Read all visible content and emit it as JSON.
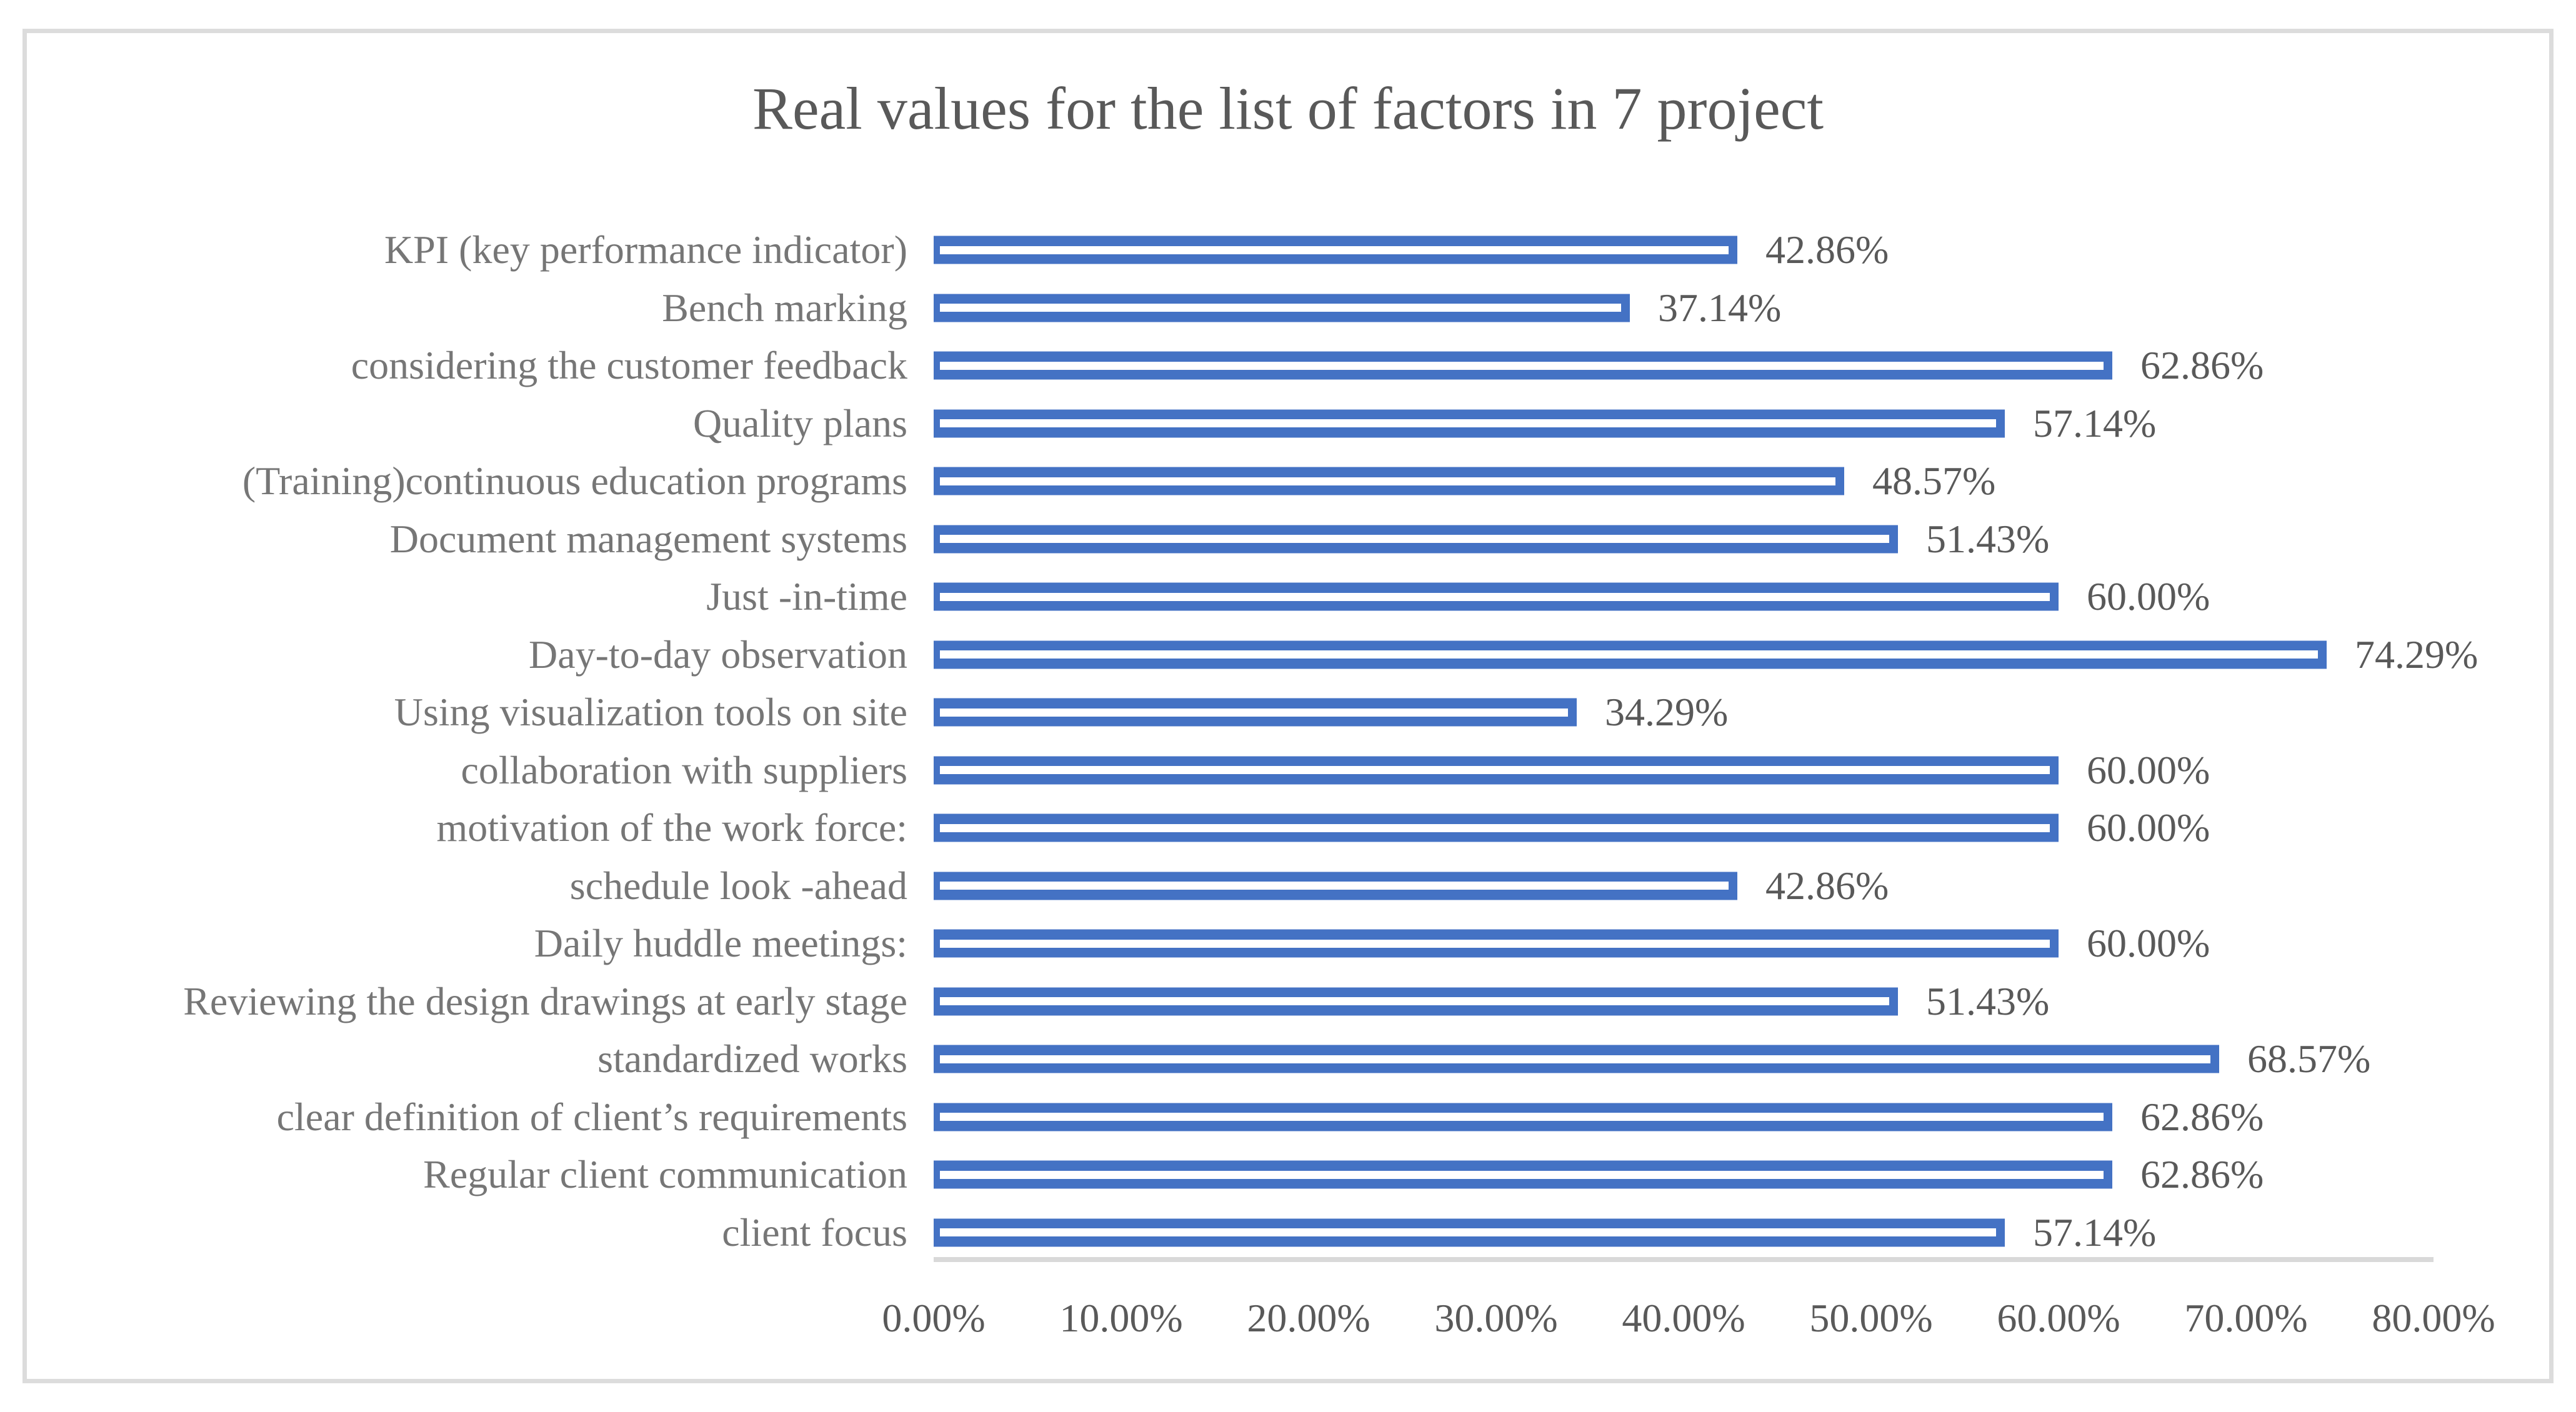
{
  "chart_data": {
    "type": "bar",
    "orientation": "horizontal",
    "title": "Real values for the list of factors in 7 project",
    "categories": [
      "KPI (key performance indicator)",
      "Bench marking",
      "considering the customer feedback",
      "Quality plans",
      "(Training)continuous education programs",
      "Document management systems",
      "Just -in-time",
      "Day-to-day observation",
      "Using visualization tools on site",
      "collaboration with suppliers",
      "motivation of the work force:",
      "schedule look -ahead",
      "Daily huddle meetings:",
      "Reviewing the design drawings at early stage",
      "standardized works",
      "clear definition of client’s requirements",
      "Regular client communication",
      "client focus"
    ],
    "values": [
      42.86,
      37.14,
      62.86,
      57.14,
      48.57,
      51.43,
      60.0,
      74.29,
      34.29,
      60.0,
      60.0,
      42.86,
      60.0,
      51.43,
      68.57,
      62.86,
      62.86,
      57.14
    ],
    "value_labels": [
      "42.86%",
      "37.14%",
      "62.86%",
      "57.14%",
      "48.57%",
      "51.43%",
      "60.00%",
      "74.29%",
      "34.29%",
      "60.00%",
      "60.00%",
      "42.86%",
      "60.00%",
      "51.43%",
      "68.57%",
      "62.86%",
      "62.86%",
      "57.14%"
    ],
    "x_ticks": [
      "0.00%",
      "10.00%",
      "20.00%",
      "30.00%",
      "40.00%",
      "50.00%",
      "60.00%",
      "70.00%",
      "80.00%"
    ],
    "xlim": [
      0,
      80
    ],
    "xlabel": "",
    "ylabel": "",
    "grid": false,
    "legend": false,
    "data_labels": true
  },
  "colors": {
    "bar_fill": "#4472C4",
    "bar_stripe": "#ffffff",
    "title_text": "#595959",
    "category_text": "#767676",
    "value_text": "#595959",
    "tick_text": "#595959",
    "axis_line": "#d9d9d9",
    "frame_border": "#dcdcdc",
    "background": "#ffffff"
  }
}
